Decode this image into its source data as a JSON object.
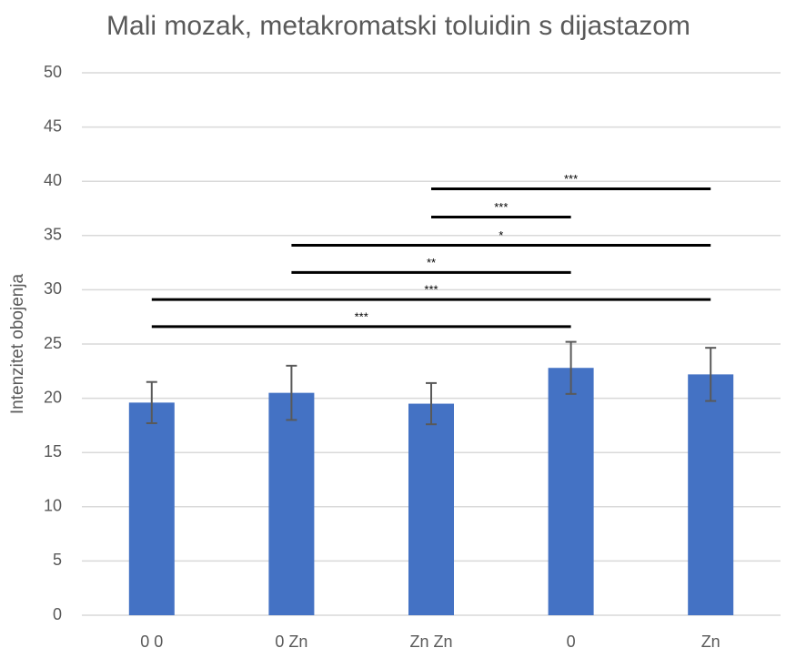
{
  "chart_data": {
    "type": "bar",
    "title": "Mali mozak, metakromatski toluidin s dijastazom",
    "y_label": "Intenzitet obojenja",
    "categories": [
      "0 0",
      "0 Zn",
      "Zn Zn",
      "0",
      "Zn"
    ],
    "values": [
      19.6,
      20.5,
      19.5,
      22.8,
      22.2
    ],
    "errors": [
      1.9,
      2.5,
      1.9,
      2.4,
      2.45
    ],
    "color": "#4472c4",
    "ylim": [
      0,
      50
    ],
    "yticks": [
      0,
      5,
      10,
      15,
      20,
      25,
      30,
      35,
      40,
      45,
      50
    ],
    "grid": true,
    "significance": [
      {
        "from": 0,
        "to": 3,
        "y": 26.6,
        "label": "***"
      },
      {
        "from": 0,
        "to": 4,
        "y": 29.1,
        "label": "***"
      },
      {
        "from": 1,
        "to": 3,
        "y": 31.6,
        "label": "**"
      },
      {
        "from": 1,
        "to": 4,
        "y": 34.1,
        "label": "*"
      },
      {
        "from": 2,
        "to": 3,
        "y": 36.7,
        "label": "***"
      },
      {
        "from": 2,
        "to": 4,
        "y": 39.3,
        "label": "***"
      }
    ]
  }
}
